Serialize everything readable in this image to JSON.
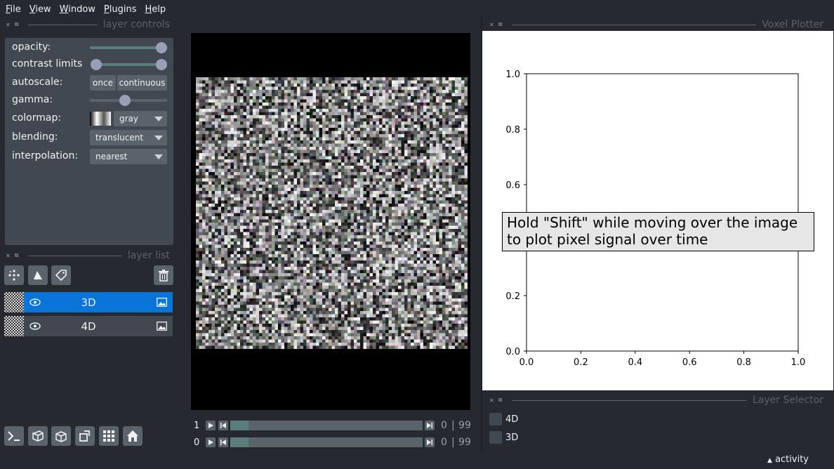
{
  "menu": [
    "File",
    "View",
    "Window",
    "Plugins",
    "Help"
  ],
  "layer_controls": {
    "title": "layer controls",
    "opacity_label": "opacity:",
    "opacity_value": 1.0,
    "contrast_label": "contrast limits",
    "autoscale_label": "autoscale:",
    "autoscale_once": "once",
    "autoscale_continuous": "continuous",
    "gamma_label": "gamma:",
    "colormap_label": "colormap:",
    "colormap_value": "gray",
    "blending_label": "blending:",
    "blending_value": "translucent",
    "interpolation_label": "interpolation:",
    "interpolation_value": "nearest"
  },
  "layer_list": {
    "title": "layer list",
    "layers": [
      {
        "name": "3D",
        "selected": true
      },
      {
        "name": "4D",
        "selected": false
      }
    ]
  },
  "dims": [
    {
      "axis": "1",
      "current": "0",
      "max": "99"
    },
    {
      "axis": "0",
      "current": "0",
      "max": "99"
    }
  ],
  "voxel_plotter": {
    "title": "Voxel Plotter",
    "message_line1": "Hold \"Shift\" while moving over the image",
    "message_line2": "to plot pixel signal over time"
  },
  "chart_data": {
    "type": "line",
    "series": [],
    "xlim": [
      0.0,
      1.0
    ],
    "ylim": [
      0.0,
      1.0
    ],
    "x_ticks": [
      "0.0",
      "0.2",
      "0.4",
      "0.6",
      "0.8",
      "1.0"
    ],
    "y_ticks": [
      "0.0",
      "0.2",
      "0.4",
      "0.6",
      "0.8",
      "1.0"
    ],
    "title": "",
    "xlabel": "",
    "ylabel": "",
    "grid": false
  },
  "layer_selector": {
    "title": "Layer Selector",
    "items": [
      "4D",
      "3D"
    ]
  },
  "status": {
    "activity": "activity"
  },
  "colors": {
    "accent": "#0a75d8",
    "panel": "#414851",
    "background": "#262930"
  }
}
